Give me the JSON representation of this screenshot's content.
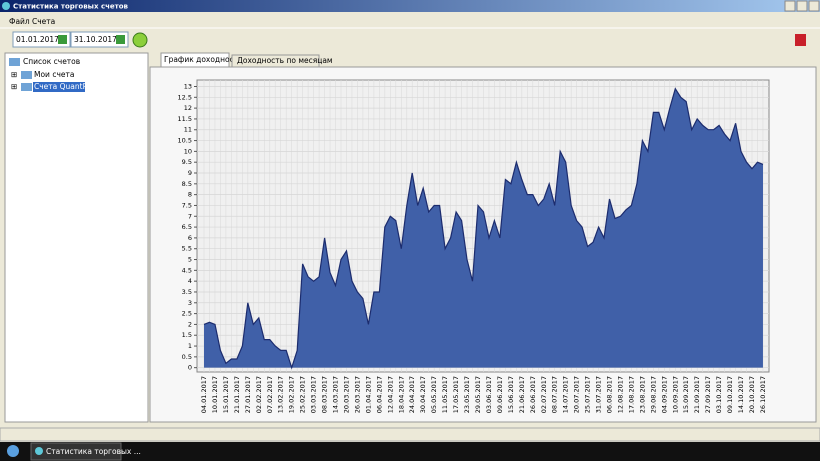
{
  "window": {
    "title": "Статистика торговых счетов"
  },
  "menu": [
    "Файл",
    "Счета"
  ],
  "toolbar": {
    "date_from": "01.01.2017",
    "date_to": "31.10.2017"
  },
  "tree": {
    "root": "Список счетов",
    "items": [
      "Мои счета",
      "Счета QuantPro"
    ]
  },
  "tabs": [
    "График доходности",
    "Доходность по месяцам"
  ],
  "taskbar": {
    "app": "Статистика торговых ..."
  },
  "chart_data": {
    "type": "area",
    "color": "#4060a8",
    "line_color": "#1c2c6e",
    "grid": true,
    "ylim": [
      -0.2,
      13.3
    ],
    "yticks": [
      0,
      0.5,
      1,
      1.5,
      2,
      2.5,
      3,
      3.5,
      4,
      4.5,
      5,
      5.5,
      6,
      6.5,
      7,
      7.5,
      8,
      8.5,
      9,
      9.5,
      10,
      10.5,
      11,
      11.5,
      12,
      12.5,
      13
    ],
    "categories": [
      "04.01.2017",
      null,
      "10.01.2017",
      null,
      "15.01.2017",
      null,
      "21.01.2017",
      null,
      "27.01.2017",
      null,
      "02.02.2017",
      null,
      "07.02.2017",
      null,
      "13.02.2017",
      null,
      "19.02.2017",
      null,
      "25.02.2017",
      null,
      "03.03.2017",
      null,
      "08.03.2017",
      null,
      "14.03.2017",
      null,
      "20.03.2017",
      null,
      "26.03.2017",
      null,
      "01.04.2017",
      null,
      "06.04.2017",
      null,
      "12.04.2017",
      null,
      "18.04.2017",
      null,
      "24.04.2017",
      null,
      "30.04.2017",
      null,
      "05.05.2017",
      null,
      "11.05.2017",
      null,
      "17.05.2017",
      null,
      "23.05.2017",
      null,
      "29.05.2017",
      null,
      "03.06.2017",
      null,
      "09.06.2017",
      null,
      "15.06.2017",
      null,
      "21.06.2017",
      null,
      "26.06.2017",
      null,
      "02.07.2017",
      null,
      "08.07.2017",
      null,
      "14.07.2017",
      null,
      "20.07.2017",
      null,
      "25.07.2017",
      null,
      "31.07.2017",
      null,
      "06.08.2017",
      null,
      "12.08.2017",
      null,
      "17.08.2017",
      null,
      "23.08.2017",
      null,
      "29.08.2017",
      null,
      "04.09.2017",
      null,
      "10.09.2017",
      null,
      "15.09.2017",
      null,
      "21.09.2017",
      null,
      "27.09.2017",
      null,
      "03.10.2017",
      null,
      "09.10.2017",
      null,
      "14.10.2017",
      null,
      "20.10.2017",
      null,
      "26.10.2017"
    ],
    "values": [
      2.0,
      2.1,
      2.0,
      0.8,
      0.2,
      0.4,
      0.4,
      1.0,
      3.0,
      2.0,
      2.3,
      1.3,
      1.3,
      1.0,
      0.8,
      0.8,
      0.0,
      0.8,
      4.8,
      4.2,
      4.0,
      4.2,
      6.0,
      4.4,
      3.8,
      5.0,
      5.4,
      4.0,
      3.5,
      3.2,
      2.0,
      3.5,
      3.5,
      6.5,
      7.0,
      6.8,
      5.5,
      7.5,
      9.0,
      7.5,
      8.3,
      7.2,
      7.5,
      7.5,
      5.5,
      6.0,
      7.2,
      6.8,
      5.0,
      4.0,
      7.5,
      7.2,
      6.0,
      6.8,
      6.0,
      8.7,
      8.5,
      9.5,
      8.7,
      8.0,
      8.0,
      7.5,
      7.8,
      8.5,
      7.5,
      10.0,
      9.5,
      7.5,
      6.8,
      6.5,
      5.6,
      5.8,
      6.5,
      6.0,
      7.8,
      6.9,
      7.0,
      7.3,
      7.5,
      8.5,
      10.5,
      10.0,
      11.8,
      11.8,
      11.0,
      12.0,
      12.9,
      12.5,
      12.3,
      11.0,
      11.5,
      11.2,
      11.0,
      11.0,
      11.2,
      10.8,
      10.5,
      11.3,
      10.0,
      9.5,
      9.2,
      9.5,
      9.4
    ]
  }
}
